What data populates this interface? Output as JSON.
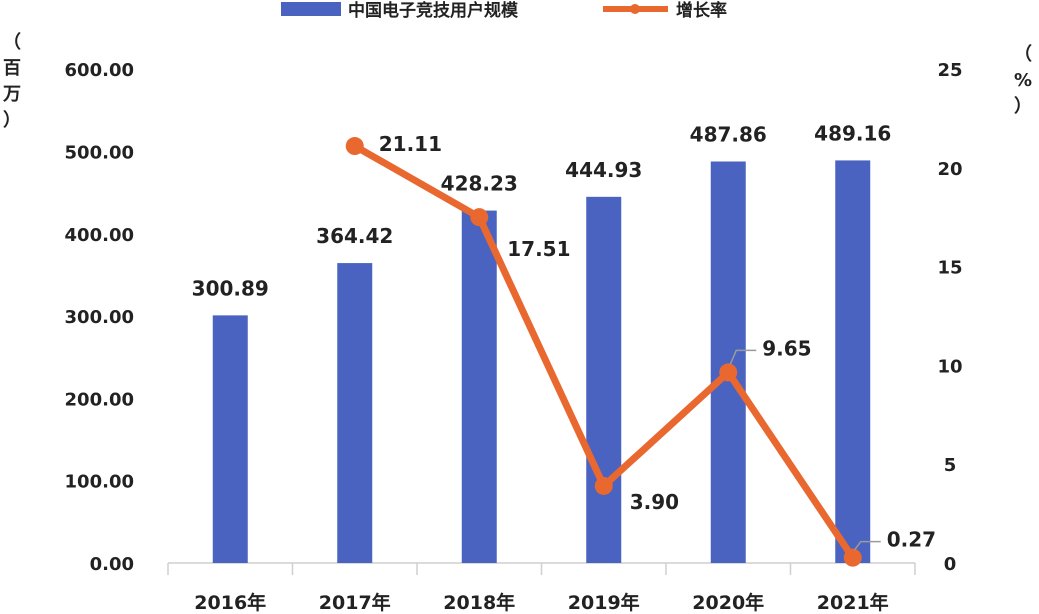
{
  "chart_data": {
    "type": "bar",
    "categories": [
      "2016年",
      "2017年",
      "2018年",
      "2019年",
      "2020年",
      "2021年"
    ],
    "series": [
      {
        "name": "中国电子竞技用户规模",
        "type": "bar",
        "axis": "left",
        "values": [
          300.89,
          364.42,
          428.23,
          444.93,
          487.86,
          489.16
        ],
        "labels": [
          "300.89",
          "364.42",
          "428.23",
          "444.93",
          "487.86",
          "489.16"
        ],
        "color": "#4a63c0"
      },
      {
        "name": "增长率",
        "type": "line",
        "axis": "right",
        "values": [
          null,
          21.11,
          17.51,
          3.9,
          9.65,
          0.27
        ],
        "labels": [
          "",
          "21.11",
          "17.51",
          "3.90",
          "9.65",
          "0.27"
        ],
        "color": "#e8682f"
      }
    ],
    "left_axis": {
      "unit_chars": [
        "（",
        "百",
        "万",
        "）"
      ],
      "ticks": [
        "0.00",
        "100.00",
        "200.00",
        "300.00",
        "400.00",
        "500.00",
        "600.00"
      ],
      "ylim": [
        0,
        600
      ]
    },
    "right_axis": {
      "unit_chars": [
        "（",
        "%",
        "）"
      ],
      "ticks": [
        "0",
        "5",
        "10",
        "15",
        "20",
        "25"
      ],
      "ylim": [
        0,
        25
      ]
    },
    "legend_position": "top-center",
    "grid": false
  }
}
